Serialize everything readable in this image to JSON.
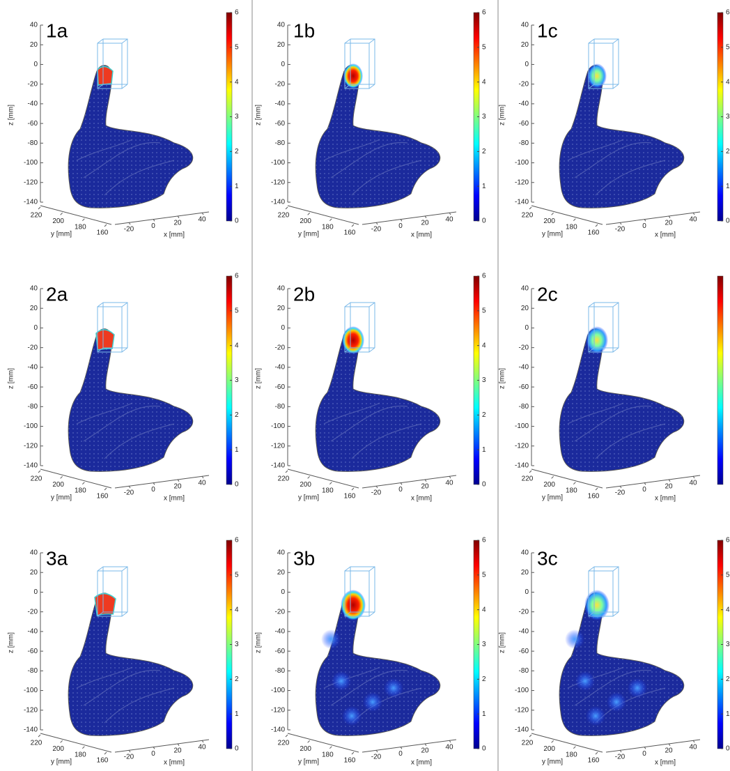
{
  "panels": [
    {
      "label": "1a",
      "zlabel": "z [mm]",
      "ylabel": "y [mm]",
      "xlabel": "x [mm]",
      "zticks": [
        40,
        20,
        0,
        -20,
        -40,
        -60,
        -80,
        -100,
        -120,
        -140
      ],
      "yticks": [
        220,
        200,
        180,
        160
      ],
      "xticks": [
        -20,
        0,
        20,
        40
      ],
      "colorbar_ticks": [
        0,
        1,
        2,
        3,
        4,
        5,
        6
      ]
    },
    {
      "label": "1b",
      "zlabel": "z [mm]",
      "ylabel": "y [mm]",
      "xlabel": "x [mm]",
      "zticks": [
        40,
        20,
        0,
        -20,
        -40,
        -60,
        -80,
        -100,
        -120,
        -140
      ],
      "yticks": [
        220,
        200,
        180,
        160
      ],
      "xticks": [
        -20,
        0,
        20,
        40
      ],
      "colorbar_ticks": [
        0,
        1,
        2,
        3,
        4,
        5,
        6
      ]
    },
    {
      "label": "1c",
      "zlabel": "z [mm]",
      "ylabel": "y [mm]",
      "xlabel": "x [mm]",
      "zticks": [
        40,
        20,
        0,
        -20,
        -40,
        -60,
        -80,
        -100,
        -120,
        -140
      ],
      "yticks": [
        220,
        200,
        180,
        160
      ],
      "xticks": [
        -20,
        0,
        20,
        40
      ],
      "colorbar_ticks": [
        0,
        1,
        2,
        3,
        4,
        5,
        6
      ]
    },
    {
      "label": "2a",
      "zlabel": "z [mm]",
      "ylabel": "y [mm]",
      "xlabel": "x [mm]",
      "zticks": [
        40,
        20,
        0,
        -20,
        -40,
        -60,
        -80,
        -100,
        -120,
        -140
      ],
      "yticks": [
        220,
        200,
        180,
        160
      ],
      "xticks": [
        -20,
        0,
        20,
        40
      ],
      "colorbar_ticks": [
        0,
        1,
        2,
        3,
        4,
        5,
        6
      ]
    },
    {
      "label": "2b",
      "zlabel": "z [mm]",
      "ylabel": "y [mm]",
      "xlabel": "x [mm]",
      "zticks": [
        40,
        20,
        0,
        -20,
        -40,
        -60,
        -80,
        -100,
        -120,
        -140
      ],
      "yticks": [
        220,
        200,
        180,
        160
      ],
      "xticks": [
        -20,
        0,
        20,
        40
      ],
      "colorbar_ticks": [
        0,
        1,
        2,
        3,
        4,
        5,
        6
      ]
    },
    {
      "label": "2c",
      "zlabel": "z [mm]",
      "ylabel": "y [mm]",
      "xlabel": "x [mm]",
      "zticks": [
        40,
        20,
        0,
        -20,
        -40,
        -60,
        -80,
        -100,
        -120,
        -140
      ],
      "yticks": [
        220,
        200,
        180,
        160
      ],
      "xticks": [
        -20,
        0,
        20,
        40
      ],
      "colorbar_ticks": []
    },
    {
      "label": "3a",
      "zlabel": "z [mm]",
      "ylabel": "y [mm]",
      "xlabel": "x [mm]",
      "zticks": [
        40,
        20,
        0,
        -20,
        -40,
        -60,
        -80,
        -100,
        -120,
        -140
      ],
      "yticks": [
        220,
        200,
        180,
        160
      ],
      "xticks": [
        -20,
        0,
        20,
        40
      ],
      "colorbar_ticks": [
        0,
        1,
        2,
        3,
        4,
        5,
        6
      ]
    },
    {
      "label": "3b",
      "zlabel": "z [mm]",
      "ylabel": "y [mm]",
      "xlabel": "x [mm]",
      "zticks": [
        40,
        20,
        0,
        -20,
        -40,
        -60,
        -80,
        -100,
        -120,
        -140
      ],
      "yticks": [
        220,
        200,
        180,
        160
      ],
      "xticks": [
        -20,
        0,
        20,
        40
      ],
      "colorbar_ticks": [
        0,
        1,
        2,
        3,
        4,
        5,
        6
      ]
    },
    {
      "label": "3c",
      "zlabel": "z [mm]",
      "ylabel": "y [mm]",
      "xlabel": "x [mm]",
      "zticks": [
        40,
        20,
        0,
        -20,
        -40,
        -60,
        -80,
        -100,
        -120,
        -140
      ],
      "yticks": [
        220,
        200,
        180,
        160
      ],
      "xticks": [
        -20,
        0,
        20,
        40
      ],
      "colorbar_ticks": [
        0,
        1,
        2,
        3,
        4,
        5,
        6
      ]
    }
  ]
}
